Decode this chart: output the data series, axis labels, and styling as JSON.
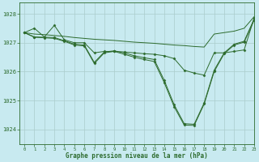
{
  "title": "Graphe pression niveau de la mer (hPa)",
  "background_color": "#c8eaf0",
  "grid_color": "#aacccc",
  "line_color": "#2d6b2d",
  "xlim": [
    -0.5,
    23
  ],
  "ylim": [
    1023.5,
    1028.4
  ],
  "yticks": [
    1024,
    1025,
    1026,
    1027,
    1028
  ],
  "xticks": [
    0,
    1,
    2,
    3,
    4,
    5,
    6,
    7,
    8,
    9,
    10,
    11,
    12,
    13,
    14,
    15,
    16,
    17,
    18,
    19,
    20,
    21,
    22,
    23
  ],
  "series": [
    {
      "x": [
        0,
        1,
        2,
        3,
        4,
        5,
        6,
        7,
        8,
        9,
        10,
        11,
        12,
        13,
        14,
        15,
        16,
        17,
        18,
        19,
        20,
        21,
        22,
        23
      ],
      "y": [
        1027.35,
        1027.3,
        1027.28,
        1027.25,
        1027.22,
        1027.18,
        1027.15,
        1027.12,
        1027.1,
        1027.08,
        1027.05,
        1027.02,
        1027.0,
        1026.98,
        1026.95,
        1026.92,
        1026.9,
        1026.87,
        1026.85,
        1027.3,
        1027.35,
        1027.4,
        1027.5,
        1027.9
      ],
      "marker": false
    },
    {
      "x": [
        0,
        1,
        2,
        3,
        4,
        5,
        6,
        7,
        8,
        9,
        10,
        11,
        12,
        13,
        14,
        15,
        16,
        17,
        18,
        19,
        20,
        21,
        22,
        23
      ],
      "y": [
        1027.35,
        1027.5,
        1027.2,
        1027.6,
        1027.1,
        1027.0,
        1027.0,
        1026.65,
        1026.7,
        1026.7,
        1026.68,
        1026.65,
        1026.62,
        1026.6,
        1026.55,
        1026.45,
        1026.05,
        1025.95,
        1025.88,
        1026.65,
        1026.65,
        1026.7,
        1026.75,
        1027.85
      ],
      "marker": true
    },
    {
      "x": [
        0,
        1,
        2,
        3,
        4,
        5,
        6,
        7,
        8,
        9,
        10,
        11,
        12,
        13,
        14,
        15,
        16,
        17,
        18,
        19,
        20,
        21,
        22,
        23
      ],
      "y": [
        1027.35,
        1027.2,
        1027.19,
        1027.18,
        1027.07,
        1026.95,
        1026.92,
        1026.32,
        1026.68,
        1026.72,
        1026.65,
        1026.55,
        1026.48,
        1026.42,
        1025.7,
        1024.85,
        1024.2,
        1024.18,
        1024.92,
        1026.05,
        1026.65,
        1026.95,
        1027.05,
        1027.82
      ],
      "marker": true
    },
    {
      "x": [
        0,
        1,
        2,
        3,
        4,
        5,
        6,
        7,
        8,
        9,
        10,
        11,
        12,
        13,
        14,
        15,
        16,
        17,
        18,
        19,
        20,
        21,
        22,
        23
      ],
      "y": [
        1027.35,
        1027.19,
        1027.17,
        1027.15,
        1027.05,
        1026.92,
        1026.89,
        1026.28,
        1026.65,
        1026.7,
        1026.6,
        1026.5,
        1026.42,
        1026.35,
        1025.62,
        1024.78,
        1024.15,
        1024.14,
        1024.88,
        1026.0,
        1026.62,
        1026.92,
        1027.02,
        1027.78
      ],
      "marker": true
    }
  ]
}
